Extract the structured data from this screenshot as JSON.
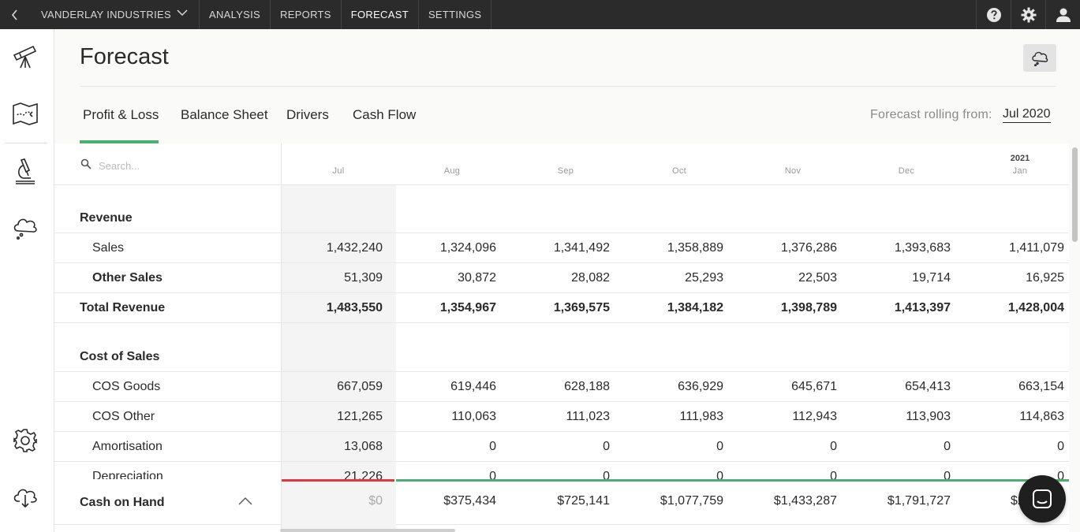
{
  "topbar": {
    "company": "VANDERLAY INDUSTRIES",
    "nav": [
      "ANALYSIS",
      "REPORTS",
      "FORECAST",
      "SETTINGS"
    ],
    "active": "FORECAST"
  },
  "page": {
    "title": "Forecast",
    "tabs": [
      "Profit & Loss",
      "Balance Sheet",
      "Drivers",
      "Cash Flow"
    ],
    "active_tab": "Profit & Loss",
    "rolling_label": "Forecast rolling from:",
    "rolling_value": "Jul 2020"
  },
  "grid": {
    "search_placeholder": "Search...",
    "year_label": "2021",
    "months": [
      "Jul",
      "Aug",
      "Sep",
      "Oct",
      "Nov",
      "Dec",
      "Jan"
    ],
    "sections": [
      {
        "title": "Revenue"
      },
      {
        "title": "Cost of Sales"
      }
    ],
    "rows": [
      {
        "label": "Sales",
        "style": "sub",
        "values": [
          "1,432,240",
          "1,324,096",
          "1,341,492",
          "1,358,889",
          "1,376,286",
          "1,393,683",
          "1,411,079"
        ]
      },
      {
        "label": "Other Sales",
        "style": "sub-bold",
        "values": [
          "51,309",
          "30,872",
          "28,082",
          "25,293",
          "22,503",
          "19,714",
          "16,925"
        ]
      },
      {
        "label": "Total Revenue",
        "style": "total",
        "values": [
          "1,483,550",
          "1,354,967",
          "1,369,575",
          "1,384,182",
          "1,398,789",
          "1,413,397",
          "1,428,004"
        ]
      },
      {
        "label": "COS Goods",
        "style": "sub",
        "values": [
          "667,059",
          "619,446",
          "628,188",
          "636,929",
          "645,671",
          "654,413",
          "663,154"
        ]
      },
      {
        "label": "COS Other",
        "style": "sub",
        "values": [
          "121,265",
          "110,063",
          "111,023",
          "111,983",
          "112,943",
          "113,903",
          "114,863"
        ]
      },
      {
        "label": "Amortisation",
        "style": "sub",
        "values": [
          "13,068",
          "0",
          "0",
          "0",
          "0",
          "0",
          "0"
        ]
      },
      {
        "label": "Depreciation",
        "style": "sub",
        "values": [
          "21,226",
          "0",
          "0",
          "0",
          "0",
          "0",
          "0"
        ]
      }
    ],
    "cash_on_hand": {
      "label": "Cash on Hand",
      "values": [
        "$0",
        "$375,434",
        "$725,141",
        "$1,077,759",
        "$1,433,287",
        "$1,791,727",
        "$2,"
      ]
    }
  },
  "icons": {
    "back": "chevron-left-icon",
    "company_dropdown": "chevron-down-icon",
    "help": "help-icon",
    "settings": "gear-icon",
    "user": "user-icon",
    "sidebar": [
      "telescope-icon",
      "map-icon",
      "microscope-icon",
      "cloud-icon",
      "gear-icon",
      "cloud-download-icon"
    ],
    "comment": "comment-icon",
    "chat": "chat-icon"
  },
  "colors": {
    "topbar_bg": "#2b2b2b",
    "accent_green": "#4caf72",
    "negative_red": "#e0383e"
  }
}
